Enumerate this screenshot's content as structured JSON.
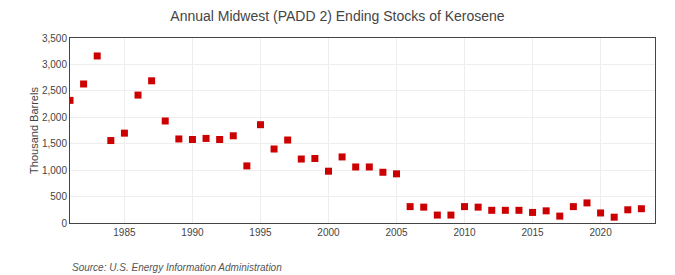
{
  "chart_data": {
    "type": "scatter",
    "title": "Annual Midwest (PADD 2) Ending Stocks of Kerosene",
    "ylabel": "Thousand Barrels",
    "source": "Source: U.S. Energy Information Administration",
    "color": "#cc0000",
    "marker": "square",
    "grid": true,
    "xlim": [
      1981.0,
      2024.0
    ],
    "xticks": [
      1985,
      1990,
      1995,
      2000,
      2005,
      2010,
      2015,
      2020
    ],
    "ylim": [
      0,
      3500
    ],
    "yticks": [
      0,
      500,
      {
        "value": 1000,
        "label": "1,000"
      },
      {
        "value": 1500,
        "label": "1,500"
      },
      {
        "value": 2000,
        "label": "2,000"
      },
      {
        "value": 2500,
        "label": "2,500"
      },
      {
        "value": 3000,
        "label": "3,000"
      },
      {
        "value": 3500,
        "label": "3,500"
      }
    ],
    "x": [
      1981,
      1982,
      1983,
      1984,
      1985,
      1986,
      1987,
      1988,
      1989,
      1990,
      1991,
      1992,
      1993,
      1994,
      1995,
      1996,
      1997,
      1998,
      1999,
      2000,
      2001,
      2002,
      2003,
      2004,
      2005,
      2006,
      2007,
      2008,
      2009,
      2010,
      2011,
      2012,
      2013,
      2014,
      2015,
      2016,
      2017,
      2018,
      2019,
      2020,
      2021,
      2022,
      2023
    ],
    "values": [
      2320,
      2630,
      3160,
      1560,
      1700,
      2420,
      2690,
      1930,
      1590,
      1580,
      1600,
      1580,
      1650,
      1080,
      1860,
      1400,
      1570,
      1210,
      1220,
      980,
      1250,
      1060,
      1060,
      960,
      930,
      310,
      300,
      150,
      150,
      310,
      300,
      240,
      240,
      240,
      200,
      230,
      130,
      310,
      380,
      190,
      110,
      250,
      270
    ]
  }
}
